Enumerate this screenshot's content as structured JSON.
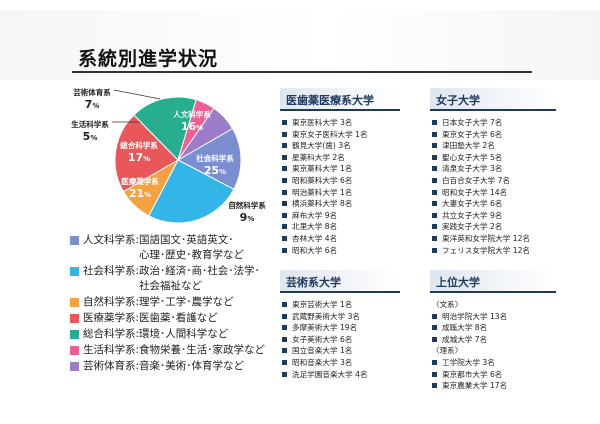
{
  "title": "系統別進学状況",
  "chart_data": {
    "type": "pie",
    "unit": "%",
    "slices": [
      {
        "name": "人文科学系",
        "value": 16,
        "color": "#7a8ed0"
      },
      {
        "name": "社会科学系",
        "value": 25,
        "color": "#33b5e8"
      },
      {
        "name": "自然科学系",
        "value": 9,
        "color": "#f7a040"
      },
      {
        "name": "医療薬学系",
        "value": 21,
        "color": "#e8585a"
      },
      {
        "name": "総合科学系",
        "value": 17,
        "color": "#27ae8f"
      },
      {
        "name": "生活科学系",
        "value": 5,
        "color": "#ec5f92"
      },
      {
        "name": "芸術体育系",
        "value": 7,
        "color": "#9b7cc9"
      }
    ]
  },
  "legend": [
    {
      "name": "人文科学系:",
      "desc": "国語国文･英語英文･\n心理･歴史･教育学など",
      "color": "#7a8ed0"
    },
    {
      "name": "社会科学系:",
      "desc": "政治･経済･商･社会･法学･\n社会福祉など",
      "color": "#33b5e8"
    },
    {
      "name": "自然科学系:",
      "desc": "理学･工学･農学など",
      "color": "#f7a040"
    },
    {
      "name": "医療薬学系:",
      "desc": "医歯薬･看護など",
      "color": "#e8585a"
    },
    {
      "name": "総合科学系:",
      "desc": "環境･人間科学など",
      "color": "#27ae8f"
    },
    {
      "name": "生活科学系:",
      "desc": "食物栄養･生活･家政学など",
      "color": "#ec5f92"
    },
    {
      "name": "芸術体育系:",
      "desc": "音楽･美術･体育学など",
      "color": "#9b7cc9"
    }
  ],
  "boxes": {
    "medical": {
      "title": "医歯薬医療系大学",
      "items": [
        "東京医科大学 3名",
        "東京女子医科大学 1名",
        "鶴見大学(歯) 3名",
        "星薬科大学 2名",
        "東京薬科大学 1名",
        "昭和薬科大学 6名",
        "明治薬科大学 1名",
        "横浜薬科大学 8名",
        "麻布大学 9名",
        "北里大学 8名",
        "杏林大学 4名",
        "昭和大学 6名"
      ]
    },
    "womens": {
      "title": "女子大学",
      "items": [
        "日本女子大学 7名",
        "東京女子大学 6名",
        "津田塾大学 2名",
        "聖心女子大学 5名",
        "清泉女子大学 3名",
        "白百合女子大学 7名",
        "昭和女子大学 14名",
        "大妻女子大学 6名",
        "共立女子大学 9名",
        "実践女子大学 2名",
        "東洋英和女学院大学 12名",
        "フェリス女学院大学 12名"
      ]
    },
    "arts": {
      "title": "芸術系大学",
      "items": [
        "東京芸術大学 1名",
        "武蔵野美術大学 3名",
        "多摩美術大学 19名",
        "女子美術大学 6名",
        "国立音楽大学 1名",
        "昭和音楽大学 3名",
        "洗足学園音楽大学 4名"
      ]
    },
    "top": {
      "title": "上位大学",
      "groups": [
        {
          "label": "〈文系〉",
          "items": [
            "明治学院大学 13名",
            "成蹊大学 8名",
            "成城大学 7名"
          ]
        },
        {
          "label": "〈理系〉",
          "items": [
            "工学院大学 3名",
            "東京都市大学 6名",
            "東京農業大学 17名"
          ]
        }
      ]
    }
  }
}
